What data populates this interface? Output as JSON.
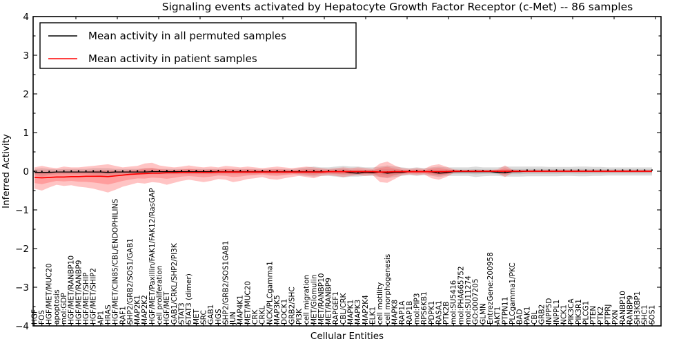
{
  "chart_data": {
    "type": "line",
    "title": "Signaling events activated by Hepatocyte Growth Factor Receptor (c-Met) -- 86 samples",
    "xlabel": "Cellular Entities",
    "ylabel": "Inferred Activity",
    "ylim": [
      -4,
      4
    ],
    "ytick_values": [
      4,
      3,
      2,
      1,
      0,
      -1,
      -2,
      -3,
      -4
    ],
    "ytick_labels": [
      "4",
      "3",
      "2",
      "1",
      "0",
      "−1",
      "−2",
      "−3",
      "−4"
    ],
    "grid": false,
    "legend_position": "upper left",
    "categories": [
      "HGF",
      "FOS",
      "HGF/MET/MUC20",
      "apoptosis",
      "mol:GDP",
      "HGF/MET/RANBP10",
      "HGF/MET/RANBP9",
      "HGF/MET/SHIP",
      "HGF/MET/SHIP2",
      "AP1",
      "HRAS",
      "HGF/MET/CIN85/CBL/ENDOPHILINS",
      "RAF1",
      "SHP2/GRB2/SOS1/GAB1",
      "MAP2K1",
      "MAP2K2",
      "HGF/MET/Paxillin/FAK1/FAK12/RasGAP",
      "cell proliferation",
      "HGF/MET",
      "GAB1/CRKL/SHP2/PI3K",
      "STAT3",
      "STAT3 (dimer)",
      "MET",
      "SRC",
      "GAB1",
      "HGS",
      "SHP2/GRB2/SOS1GAB1",
      "JUN",
      "MAP4K1",
      "MET/MUC20",
      "CRK",
      "CRKL",
      "NCK/PLCgamma1",
      "MAP3K5",
      "DOCK1",
      "GRB2/SHC",
      "PI3K",
      "cell migration",
      "MET/Glomulin",
      "MET/RANBP10",
      "MET/RANBP9",
      "RAPGEF1",
      "CBL/CRK",
      "MAPK1",
      "MAPK3",
      "MAP2K4",
      "ELK1",
      "cell motility",
      "cell morphogenesis",
      "MAPK8",
      "RAP1A",
      "RAP1B",
      "mol:PIP3",
      "RPS6KB1",
      "PDPK1",
      "RASA1",
      "PTK2B",
      "mol:SU5416",
      "mol:PHA665752",
      "mol:SU11274",
      "GO:0007205",
      "GLMN",
      "EntrezGene:200958",
      "AKT1",
      "PTPN11",
      "PLCgamma1/PKC",
      "BAD",
      "PAK1",
      "CBL",
      "GRB2",
      "INPP5D",
      "INPPL1",
      "NCK1",
      "PIK3CA",
      "PIK3R1",
      "PLCG1",
      "PTEN",
      "PTK2",
      "PTPRJ",
      "PXN",
      "RANBP10",
      "RANBP9",
      "SH3KBP1",
      "SHC1",
      "SOS1"
    ],
    "series": [
      {
        "name": "Mean activity in all permuted samples",
        "color": "#000000",
        "style": "solid_with_dots",
        "values": [
          -0.03,
          -0.03,
          -0.03,
          -0.02,
          -0.02,
          -0.02,
          -0.02,
          -0.02,
          -0.02,
          -0.02,
          -0.03,
          -0.02,
          -0.02,
          -0.02,
          -0.02,
          -0.02,
          -0.01,
          -0.01,
          -0.01,
          -0.01,
          -0.01,
          -0.01,
          -0.01,
          -0.01,
          -0.01,
          -0.01,
          -0.01,
          -0.01,
          -0.01,
          -0.01,
          -0.01,
          -0.01,
          -0.01,
          -0.01,
          -0.01,
          -0.01,
          -0.01,
          -0.01,
          -0.01,
          -0.01,
          -0.01,
          -0.01,
          -0.01,
          -0.04,
          -0.05,
          -0.03,
          -0.04,
          -0.02,
          -0.05,
          -0.03,
          -0.03,
          -0.01,
          -0.01,
          -0.01,
          -0.02,
          -0.05,
          -0.04,
          -0.01,
          -0.01,
          -0.01,
          -0.01,
          -0.01,
          -0.01,
          -0.03,
          -0.04,
          -0.01,
          -0.01,
          0,
          0,
          0,
          0,
          0,
          0,
          0,
          0,
          0,
          0,
          0,
          0,
          0,
          0,
          0,
          0,
          0,
          0
        ]
      },
      {
        "name": "Mean activity in patient samples",
        "color": "#ff0000",
        "style": "solid",
        "values": [
          -0.16,
          -0.17,
          -0.16,
          -0.15,
          -0.15,
          -0.14,
          -0.14,
          -0.13,
          -0.13,
          -0.13,
          -0.14,
          -0.12,
          -0.1,
          -0.08,
          -0.07,
          -0.06,
          -0.05,
          -0.05,
          -0.04,
          -0.04,
          -0.03,
          -0.03,
          -0.03,
          -0.03,
          -0.03,
          -0.02,
          -0.02,
          -0.02,
          -0.02,
          -0.02,
          -0.02,
          -0.02,
          -0.02,
          -0.02,
          -0.02,
          -0.02,
          -0.02,
          -0.02,
          -0.02,
          -0.02,
          -0.01,
          -0.01,
          -0.01,
          -0.01,
          -0.01,
          -0.01,
          -0.01,
          -0.02,
          -0.02,
          -0.01,
          -0.01,
          -0.01,
          -0.01,
          -0.01,
          -0.01,
          -0.01,
          -0.01,
          0,
          0,
          0,
          0,
          0,
          0,
          0,
          0,
          0,
          0,
          0,
          0,
          0,
          0,
          0,
          0,
          0,
          0,
          0,
          0,
          0,
          0,
          0,
          0,
          0,
          0,
          0,
          0
        ]
      }
    ],
    "bands": [
      {
        "name": "Permuted samples activity spread",
        "color": "#999999",
        "opacity": 0.35,
        "series_ref": 0,
        "upper": [
          0.06,
          0.08,
          0.06,
          0.05,
          0.06,
          0.06,
          0.06,
          0.06,
          0.08,
          0.08,
          0.08,
          0.06,
          0.06,
          0.06,
          0.06,
          0.08,
          0.08,
          0.06,
          0.06,
          0.06,
          0.06,
          0.06,
          0.06,
          0.06,
          0.06,
          0.06,
          0.06,
          0.06,
          0.06,
          0.06,
          0.06,
          0.05,
          0.06,
          0.06,
          0.06,
          0.05,
          0.08,
          0.1,
          0.12,
          0.1,
          0.1,
          0.12,
          0.14,
          0.12,
          0.12,
          0.1,
          0.1,
          0.12,
          0.15,
          0.12,
          0.1,
          0.08,
          0.1,
          0.08,
          0.1,
          0.12,
          0.1,
          0.1,
          0.1,
          0.1,
          0.12,
          0.1,
          0.1,
          0.1,
          0.12,
          0.12,
          0.12,
          0.12,
          0.12,
          0.12,
          0.11,
          0.11,
          0.11,
          0.11,
          0.12,
          0.12,
          0.11,
          0.11,
          0.1,
          0.1,
          0.1,
          0.1,
          0.1,
          0.1,
          0.1
        ],
        "lower": [
          -0.1,
          -0.14,
          -0.1,
          -0.08,
          -0.08,
          -0.08,
          -0.08,
          -0.08,
          -0.1,
          -0.12,
          -0.12,
          -0.1,
          -0.08,
          -0.08,
          -0.08,
          -0.08,
          -0.08,
          -0.08,
          -0.08,
          -0.08,
          -0.08,
          -0.08,
          -0.08,
          -0.08,
          -0.08,
          -0.08,
          -0.08,
          -0.08,
          -0.08,
          -0.08,
          -0.08,
          -0.06,
          -0.08,
          -0.08,
          -0.08,
          -0.06,
          -0.1,
          -0.12,
          -0.14,
          -0.12,
          -0.12,
          -0.14,
          -0.16,
          -0.14,
          -0.14,
          -0.12,
          -0.12,
          -0.15,
          -0.18,
          -0.15,
          -0.12,
          -0.1,
          -0.12,
          -0.1,
          -0.12,
          -0.15,
          -0.12,
          -0.12,
          -0.12,
          -0.12,
          -0.15,
          -0.13,
          -0.12,
          -0.12,
          -0.14,
          -0.14,
          -0.14,
          -0.13,
          -0.13,
          -0.13,
          -0.13,
          -0.13,
          -0.12,
          -0.12,
          -0.13,
          -0.13,
          -0.12,
          -0.12,
          -0.11,
          -0.11,
          -0.11,
          -0.11,
          -0.11,
          -0.11,
          -0.11
        ]
      },
      {
        "name": "Patient samples activity spread",
        "color": "#ff5555",
        "opacity": 0.35,
        "series_ref": 1,
        "upper": [
          0.1,
          0.14,
          0.1,
          0.08,
          0.12,
          0.1,
          0.1,
          0.12,
          0.14,
          0.16,
          0.18,
          0.14,
          0.1,
          0.12,
          0.14,
          0.2,
          0.22,
          0.15,
          0.12,
          0.1,
          0.12,
          0.15,
          0.12,
          0.1,
          0.12,
          0.1,
          0.14,
          0.12,
          0.1,
          0.12,
          0.1,
          0.08,
          0.1,
          0.12,
          0.1,
          0.08,
          0.1,
          0.12,
          0.1,
          0.08,
          0.06,
          0.08,
          0.1,
          0.08,
          0.1,
          0.08,
          0.06,
          0.2,
          0.25,
          0.15,
          0.08,
          0.06,
          0.08,
          0.06,
          0.15,
          0.18,
          0.12,
          0.05,
          0.03,
          0.03,
          0.03,
          0.03,
          0.03,
          0.05,
          0.15,
          0.04,
          0.03,
          0.03,
          0.03,
          0.03,
          0.03,
          0.03,
          0.03,
          0.03,
          0.03,
          0.03,
          0.03,
          0.03,
          0.03,
          0.03,
          0.03,
          0.03,
          0.03,
          0.03,
          0.03
        ],
        "lower": [
          -0.45,
          -0.5,
          -0.42,
          -0.35,
          -0.38,
          -0.36,
          -0.4,
          -0.42,
          -0.45,
          -0.5,
          -0.55,
          -0.48,
          -0.4,
          -0.35,
          -0.3,
          -0.32,
          -0.28,
          -0.3,
          -0.35,
          -0.3,
          -0.25,
          -0.22,
          -0.25,
          -0.28,
          -0.25,
          -0.2,
          -0.22,
          -0.28,
          -0.25,
          -0.2,
          -0.18,
          -0.15,
          -0.2,
          -0.22,
          -0.18,
          -0.15,
          -0.12,
          -0.15,
          -0.18,
          -0.12,
          -0.1,
          -0.12,
          -0.15,
          -0.12,
          -0.1,
          -0.12,
          -0.1,
          -0.28,
          -0.3,
          -0.2,
          -0.1,
          -0.08,
          -0.1,
          -0.08,
          -0.18,
          -0.22,
          -0.15,
          -0.05,
          -0.03,
          -0.03,
          -0.04,
          -0.03,
          -0.03,
          -0.05,
          -0.15,
          -0.04,
          -0.03,
          -0.03,
          -0.03,
          -0.03,
          -0.03,
          -0.03,
          -0.03,
          -0.03,
          -0.03,
          -0.03,
          -0.03,
          -0.03,
          -0.03,
          -0.03,
          -0.03,
          -0.03,
          -0.03,
          -0.03,
          -0.03
        ]
      }
    ]
  }
}
